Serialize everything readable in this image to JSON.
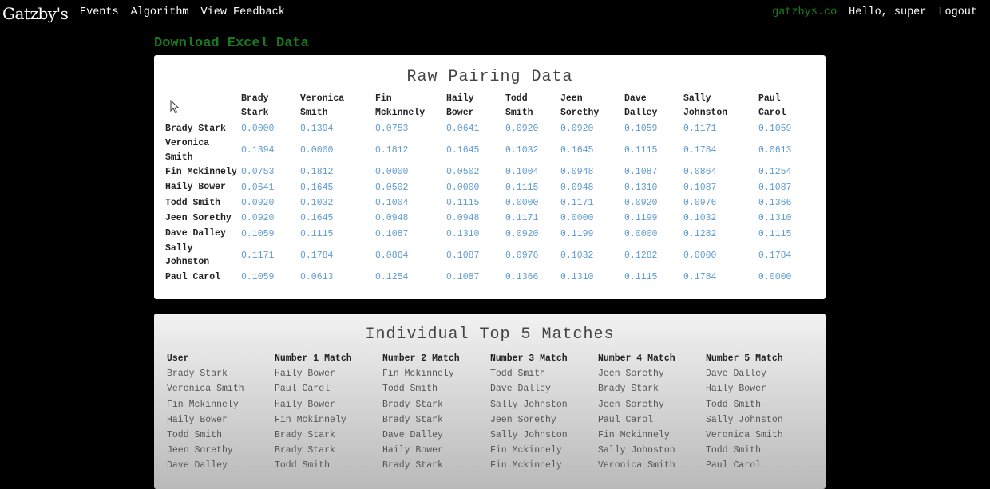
{
  "nav": {
    "brand": "Gatzby's",
    "links": [
      "Events",
      "Algorithm",
      "View Feedback"
    ],
    "site": "gatzbys.co",
    "greeting": "Hello, super",
    "logout": "Logout"
  },
  "download_label": "Download Excel Data",
  "raw": {
    "title": "Raw Pairing Data",
    "headers": [
      "Brady Stark",
      "Veronica Smith",
      "Fin Mckinnely",
      "Haily Bower",
      "Todd Smith",
      "Jeen Sorethy",
      "Dave Dalley",
      "Sally Johnston",
      "Paul Carol"
    ],
    "rows": [
      {
        "name": "Brady Stark",
        "values": [
          "0.0000",
          "0.1394",
          "0.0753",
          "0.0641",
          "0.0920",
          "0.0920",
          "0.1059",
          "0.1171",
          "0.1059"
        ]
      },
      {
        "name": "Veronica Smith",
        "values": [
          "0.1394",
          "0.0000",
          "0.1812",
          "0.1645",
          "0.1032",
          "0.1645",
          "0.1115",
          "0.1784",
          "0.0613"
        ]
      },
      {
        "name": "Fin Mckinnely",
        "values": [
          "0.0753",
          "0.1812",
          "0.0000",
          "0.0502",
          "0.1004",
          "0.0948",
          "0.1087",
          "0.0864",
          "0.1254"
        ]
      },
      {
        "name": "Haily Bower",
        "values": [
          "0.0641",
          "0.1645",
          "0.0502",
          "0.0000",
          "0.1115",
          "0.0948",
          "0.1310",
          "0.1087",
          "0.1087"
        ]
      },
      {
        "name": "Todd Smith",
        "values": [
          "0.0920",
          "0.1032",
          "0.1004",
          "0.1115",
          "0.0000",
          "0.1171",
          "0.0920",
          "0.0976",
          "0.1366"
        ]
      },
      {
        "name": "Jeen Sorethy",
        "values": [
          "0.0920",
          "0.1645",
          "0.0948",
          "0.0948",
          "0.1171",
          "0.0000",
          "0.1199",
          "0.1032",
          "0.1310"
        ]
      },
      {
        "name": "Dave Dalley",
        "values": [
          "0.1059",
          "0.1115",
          "0.1087",
          "0.1310",
          "0.0920",
          "0.1199",
          "0.0000",
          "0.1282",
          "0.1115"
        ]
      },
      {
        "name": "Sally Johnston",
        "values": [
          "0.1171",
          "0.1784",
          "0.0864",
          "0.1087",
          "0.0976",
          "0.1032",
          "0.1282",
          "0.0000",
          "0.1784"
        ]
      },
      {
        "name": "Paul Carol",
        "values": [
          "0.1059",
          "0.0613",
          "0.1254",
          "0.1087",
          "0.1366",
          "0.1310",
          "0.1115",
          "0.1784",
          "0.0000"
        ]
      }
    ]
  },
  "top5": {
    "title": "Individual Top 5 Matches",
    "headers": [
      "User",
      "Number 1 Match",
      "Number 2 Match",
      "Number 3 Match",
      "Number 4 Match",
      "Number 5 Match"
    ],
    "rows": [
      [
        "Brady Stark",
        "Haily Bower",
        "Fin Mckinnely",
        "Todd Smith",
        "Jeen Sorethy",
        "Dave Dalley"
      ],
      [
        "Veronica Smith",
        "Paul Carol",
        "Todd Smith",
        "Dave Dalley",
        "Brady Stark",
        "Haily Bower"
      ],
      [
        "Fin Mckinnely",
        "Haily Bower",
        "Brady Stark",
        "Sally Johnston",
        "Jeen Sorethy",
        "Todd Smith"
      ],
      [
        "Haily Bower",
        "Fin Mckinnely",
        "Brady Stark",
        "Jeen Sorethy",
        "Paul Carol",
        "Sally Johnston"
      ],
      [
        "Todd Smith",
        "Brady Stark",
        "Dave Dalley",
        "Sally Johnston",
        "Fin Mckinnely",
        "Veronica Smith"
      ],
      [
        "Jeen Sorethy",
        "Brady Stark",
        "Haily Bower",
        "Fin Mckinnely",
        "Sally Johnston",
        "Todd Smith"
      ],
      [
        "Dave Dalley",
        "Todd Smith",
        "Brady Stark",
        "Fin Mckinnely",
        "Veronica Smith",
        "Paul Carol"
      ]
    ]
  },
  "colors": {
    "background": "#000000",
    "accent_green": "#1b7a1f",
    "value_blue": "#5d9ad1"
  },
  "icons": {
    "cursor": "mouse-pointer-icon"
  }
}
